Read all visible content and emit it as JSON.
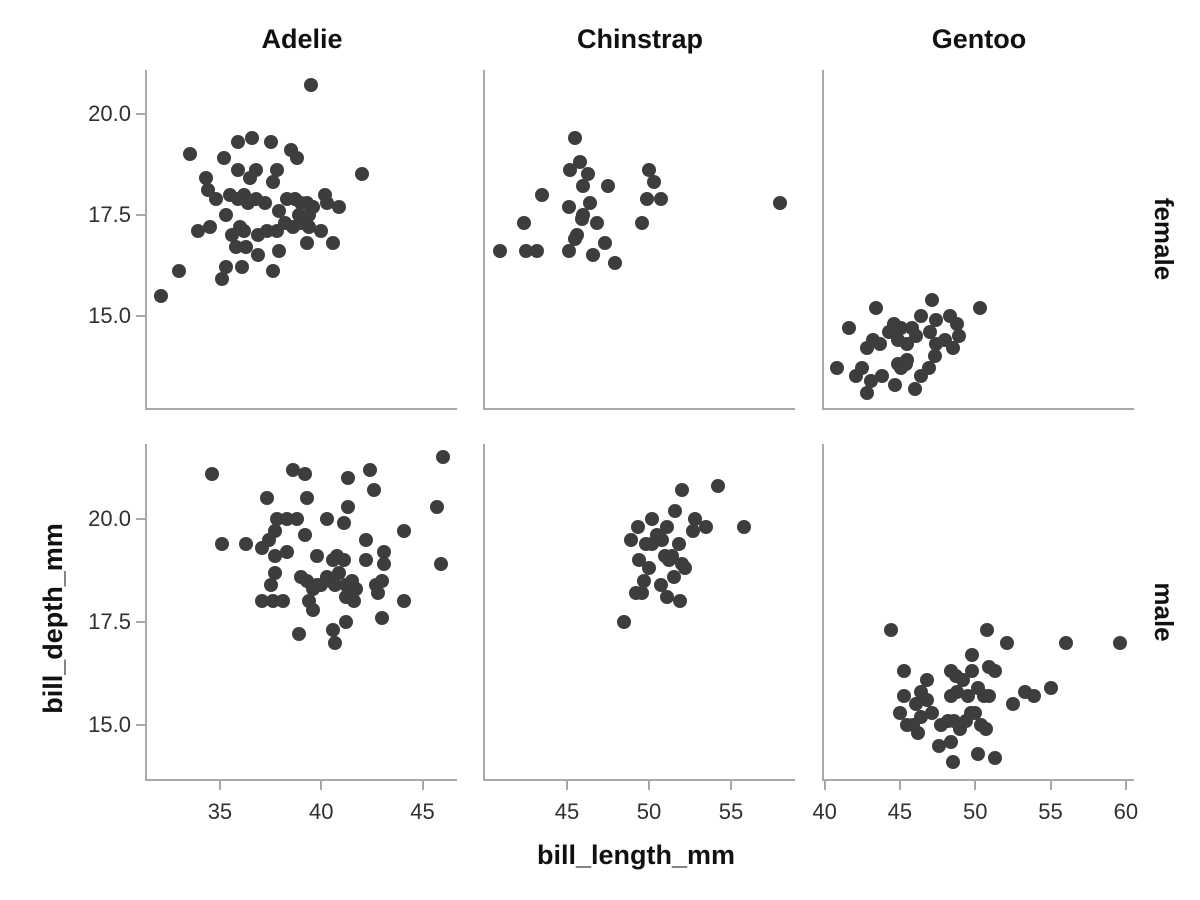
{
  "chart_data": {
    "type": "scatter",
    "title": "",
    "xlabel": "bill_length_mm",
    "ylabel": "bill_depth_mm",
    "legend": "none",
    "grid": "off",
    "point_color": "#3d3d3d",
    "spine_color": "#a9a9a9",
    "facet_columns": [
      "Adelie",
      "Chinstrap",
      "Gentoo"
    ],
    "facet_rows": [
      "female",
      "male"
    ],
    "col_x_ranges": {
      "Adelie": [
        31.4,
        46.7
      ],
      "Chinstrap": [
        40.0,
        58.9
      ],
      "Gentoo": [
        39.96,
        60.54
      ]
    },
    "row_y_ranges": {
      "female": [
        12.72,
        21.08
      ],
      "male": [
        13.69,
        21.82
      ]
    },
    "x_ticks": {
      "Adelie": {
        "labels": [
          "35",
          "40",
          "45"
        ],
        "values": [
          35,
          40,
          45
        ]
      },
      "Chinstrap": {
        "labels": [
          "45",
          "50",
          "55"
        ],
        "values": [
          45,
          50,
          55
        ]
      },
      "Gentoo": {
        "labels": [
          "40",
          "45",
          "50",
          "55",
          "60"
        ],
        "values": [
          40,
          45,
          50,
          55,
          60
        ]
      }
    },
    "y_ticks": {
      "labels": [
        "20.0",
        "17.5",
        "15.0"
      ],
      "values": [
        20.0,
        17.5,
        15.0
      ]
    },
    "points": {
      "Adelie_female": [
        [
          39.5,
          20.7
        ],
        [
          33.5,
          19.0
        ],
        [
          35.9,
          19.3
        ],
        [
          36.6,
          19.4
        ],
        [
          37.5,
          19.3
        ],
        [
          35.2,
          18.9
        ],
        [
          38.5,
          19.1
        ],
        [
          38.8,
          18.9
        ],
        [
          35.9,
          18.6
        ],
        [
          36.5,
          18.4
        ],
        [
          36.8,
          18.6
        ],
        [
          37.8,
          18.6
        ],
        [
          37.6,
          18.3
        ],
        [
          34.3,
          18.4
        ],
        [
          34.4,
          18.1
        ],
        [
          42.0,
          18.5
        ],
        [
          34.8,
          17.9
        ],
        [
          35.5,
          18.0
        ],
        [
          35.9,
          17.9
        ],
        [
          36.2,
          18.0
        ],
        [
          36.4,
          17.8
        ],
        [
          36.8,
          17.9
        ],
        [
          37.2,
          17.8
        ],
        [
          38.3,
          17.9
        ],
        [
          38.7,
          17.9
        ],
        [
          39.0,
          17.8
        ],
        [
          39.3,
          17.8
        ],
        [
          40.2,
          18.0
        ],
        [
          40.3,
          17.8
        ],
        [
          40.9,
          17.7
        ],
        [
          35.3,
          17.5
        ],
        [
          37.9,
          17.6
        ],
        [
          38.9,
          17.5
        ],
        [
          39.4,
          17.5
        ],
        [
          39.6,
          17.7
        ],
        [
          33.9,
          17.1
        ],
        [
          34.5,
          17.2
        ],
        [
          36.0,
          17.2
        ],
        [
          36.2,
          17.1
        ],
        [
          35.6,
          17.0
        ],
        [
          36.9,
          17.0
        ],
        [
          37.3,
          17.1
        ],
        [
          37.8,
          17.1
        ],
        [
          38.2,
          17.3
        ],
        [
          38.6,
          17.2
        ],
        [
          39.0,
          17.3
        ],
        [
          39.4,
          17.2
        ],
        [
          40.0,
          17.1
        ],
        [
          40.6,
          16.8
        ],
        [
          35.8,
          16.7
        ],
        [
          36.3,
          16.7
        ],
        [
          36.9,
          16.5
        ],
        [
          37.9,
          16.6
        ],
        [
          39.3,
          16.8
        ],
        [
          35.3,
          16.2
        ],
        [
          36.1,
          16.2
        ],
        [
          35.1,
          15.9
        ],
        [
          37.6,
          16.1
        ],
        [
          33.0,
          16.1
        ],
        [
          32.1,
          15.5
        ]
      ],
      "Adelie_male": [
        [
          34.6,
          21.1
        ],
        [
          46.0,
          21.5
        ],
        [
          38.6,
          21.2
        ],
        [
          39.2,
          21.1
        ],
        [
          41.3,
          21.0
        ],
        [
          42.4,
          21.2
        ],
        [
          42.6,
          20.7
        ],
        [
          39.3,
          20.5
        ],
        [
          37.3,
          20.5
        ],
        [
          45.7,
          20.3
        ],
        [
          41.3,
          20.3
        ],
        [
          40.3,
          20.0
        ],
        [
          41.1,
          19.9
        ],
        [
          37.8,
          20.0
        ],
        [
          38.3,
          20.0
        ],
        [
          38.8,
          20.0
        ],
        [
          37.7,
          19.7
        ],
        [
          39.2,
          19.6
        ],
        [
          44.1,
          19.7
        ],
        [
          35.1,
          19.4
        ],
        [
          36.3,
          19.4
        ],
        [
          37.1,
          19.3
        ],
        [
          37.4,
          19.5
        ],
        [
          37.7,
          19.1
        ],
        [
          38.3,
          19.2
        ],
        [
          39.8,
          19.1
        ],
        [
          40.6,
          19.0
        ],
        [
          40.8,
          19.1
        ],
        [
          41.1,
          19.0
        ],
        [
          42.2,
          19.5
        ],
        [
          42.2,
          19.0
        ],
        [
          43.1,
          19.2
        ],
        [
          43.1,
          18.9
        ],
        [
          45.9,
          18.9
        ],
        [
          37.7,
          18.7
        ],
        [
          37.5,
          18.4
        ],
        [
          39.0,
          18.6
        ],
        [
          39.3,
          18.5
        ],
        [
          39.8,
          18.4
        ],
        [
          40.3,
          18.6
        ],
        [
          40.5,
          18.5
        ],
        [
          40.7,
          18.4
        ],
        [
          40.9,
          18.7
        ],
        [
          41.2,
          18.4
        ],
        [
          41.5,
          18.5
        ],
        [
          41.7,
          18.3
        ],
        [
          39.6,
          18.3
        ],
        [
          40.0,
          18.4
        ],
        [
          42.7,
          18.4
        ],
        [
          43.0,
          18.5
        ],
        [
          44.1,
          18.0
        ],
        [
          37.1,
          18.0
        ],
        [
          37.6,
          18.0
        ],
        [
          38.1,
          18.0
        ],
        [
          39.4,
          18.0
        ],
        [
          39.6,
          17.8
        ],
        [
          41.2,
          18.1
        ],
        [
          41.6,
          18.0
        ],
        [
          42.8,
          18.2
        ],
        [
          41.2,
          17.5
        ],
        [
          43.0,
          17.6
        ],
        [
          38.9,
          17.2
        ],
        [
          40.6,
          17.3
        ],
        [
          40.7,
          17.0
        ]
      ],
      "Chinstrap_female": [
        [
          45.5,
          19.4
        ],
        [
          45.8,
          18.8
        ],
        [
          45.2,
          18.6
        ],
        [
          46.3,
          18.5
        ],
        [
          50.0,
          18.6
        ],
        [
          50.3,
          18.3
        ],
        [
          47.5,
          18.2
        ],
        [
          46.0,
          18.2
        ],
        [
          43.5,
          18.0
        ],
        [
          45.1,
          17.7
        ],
        [
          46.4,
          17.8
        ],
        [
          49.9,
          17.9
        ],
        [
          50.7,
          17.9
        ],
        [
          58.0,
          17.8
        ],
        [
          46.0,
          17.5
        ],
        [
          45.9,
          17.4
        ],
        [
          42.4,
          17.3
        ],
        [
          46.8,
          17.3
        ],
        [
          49.6,
          17.3
        ],
        [
          45.6,
          17.0
        ],
        [
          45.5,
          16.9
        ],
        [
          40.9,
          16.6
        ],
        [
          42.5,
          16.6
        ],
        [
          43.2,
          16.6
        ],
        [
          45.1,
          16.6
        ],
        [
          46.6,
          16.5
        ],
        [
          47.3,
          16.8
        ],
        [
          47.9,
          16.3
        ]
      ],
      "Chinstrap_male": [
        [
          52.0,
          20.7
        ],
        [
          54.2,
          20.8
        ],
        [
          51.6,
          20.2
        ],
        [
          49.3,
          19.8
        ],
        [
          50.2,
          20.0
        ],
        [
          51.1,
          19.8
        ],
        [
          52.8,
          20.0
        ],
        [
          52.7,
          19.7
        ],
        [
          53.5,
          19.8
        ],
        [
          55.8,
          19.8
        ],
        [
          48.9,
          19.5
        ],
        [
          49.8,
          19.4
        ],
        [
          50.2,
          19.4
        ],
        [
          50.5,
          19.6
        ],
        [
          50.8,
          19.5
        ],
        [
          51.8,
          19.4
        ],
        [
          49.4,
          19.0
        ],
        [
          51.0,
          19.1
        ],
        [
          51.2,
          19.0
        ],
        [
          51.4,
          19.1
        ],
        [
          52.0,
          18.9
        ],
        [
          52.2,
          18.8
        ],
        [
          50.0,
          18.8
        ],
        [
          51.5,
          18.6
        ],
        [
          49.7,
          18.5
        ],
        [
          50.7,
          18.4
        ],
        [
          49.2,
          18.2
        ],
        [
          49.6,
          18.2
        ],
        [
          51.1,
          18.1
        ],
        [
          51.9,
          18.0
        ],
        [
          48.5,
          17.5
        ]
      ],
      "Gentoo_female": [
        [
          47.1,
          15.4
        ],
        [
          50.3,
          15.2
        ],
        [
          43.4,
          15.2
        ],
        [
          46.4,
          15.0
        ],
        [
          47.4,
          14.9
        ],
        [
          48.3,
          15.0
        ],
        [
          48.8,
          14.8
        ],
        [
          41.6,
          14.7
        ],
        [
          44.6,
          14.8
        ],
        [
          45.1,
          14.7
        ],
        [
          45.8,
          14.7
        ],
        [
          46.1,
          14.5
        ],
        [
          47.0,
          14.6
        ],
        [
          43.2,
          14.4
        ],
        [
          43.7,
          14.3
        ],
        [
          42.8,
          14.2
        ],
        [
          44.3,
          14.6
        ],
        [
          44.9,
          14.4
        ],
        [
          45.5,
          14.3
        ],
        [
          47.4,
          14.3
        ],
        [
          48.0,
          14.4
        ],
        [
          48.9,
          14.5
        ],
        [
          48.5,
          14.2
        ],
        [
          47.3,
          14.0
        ],
        [
          45.5,
          13.9
        ],
        [
          40.8,
          13.7
        ],
        [
          42.1,
          13.5
        ],
        [
          42.5,
          13.7
        ],
        [
          43.1,
          13.4
        ],
        [
          43.8,
          13.5
        ],
        [
          44.9,
          13.8
        ],
        [
          45.1,
          13.7
        ],
        [
          45.4,
          13.8
        ],
        [
          46.9,
          13.7
        ],
        [
          46.4,
          13.5
        ],
        [
          44.7,
          13.3
        ],
        [
          46.0,
          13.2
        ],
        [
          42.8,
          13.1
        ]
      ],
      "Gentoo_male": [
        [
          44.4,
          17.3
        ],
        [
          50.8,
          17.3
        ],
        [
          52.1,
          17.0
        ],
        [
          56.0,
          17.0
        ],
        [
          59.6,
          17.0
        ],
        [
          49.8,
          16.7
        ],
        [
          45.3,
          16.3
        ],
        [
          46.8,
          16.1
        ],
        [
          48.4,
          16.3
        ],
        [
          48.7,
          16.2
        ],
        [
          49.2,
          16.1
        ],
        [
          49.8,
          16.3
        ],
        [
          50.9,
          16.4
        ],
        [
          51.3,
          16.3
        ],
        [
          45.3,
          15.7
        ],
        [
          46.4,
          15.8
        ],
        [
          46.8,
          15.6
        ],
        [
          48.4,
          15.7
        ],
        [
          48.8,
          15.8
        ],
        [
          49.5,
          15.7
        ],
        [
          50.2,
          15.9
        ],
        [
          50.6,
          15.7
        ],
        [
          50.9,
          15.7
        ],
        [
          52.5,
          15.5
        ],
        [
          53.3,
          15.8
        ],
        [
          53.9,
          15.7
        ],
        [
          55.0,
          15.9
        ],
        [
          45.0,
          15.3
        ],
        [
          46.1,
          15.5
        ],
        [
          46.4,
          15.2
        ],
        [
          47.1,
          15.3
        ],
        [
          45.5,
          15.0
        ],
        [
          45.9,
          15.0
        ],
        [
          46.2,
          14.8
        ],
        [
          47.7,
          15.0
        ],
        [
          48.2,
          15.1
        ],
        [
          48.6,
          15.1
        ],
        [
          49.0,
          14.9
        ],
        [
          49.4,
          15.1
        ],
        [
          49.7,
          15.3
        ],
        [
          50.0,
          15.3
        ],
        [
          50.4,
          15.0
        ],
        [
          50.7,
          14.9
        ],
        [
          47.6,
          14.5
        ],
        [
          48.4,
          14.6
        ],
        [
          50.2,
          14.3
        ],
        [
          51.3,
          14.2
        ],
        [
          48.5,
          14.1
        ]
      ]
    }
  }
}
